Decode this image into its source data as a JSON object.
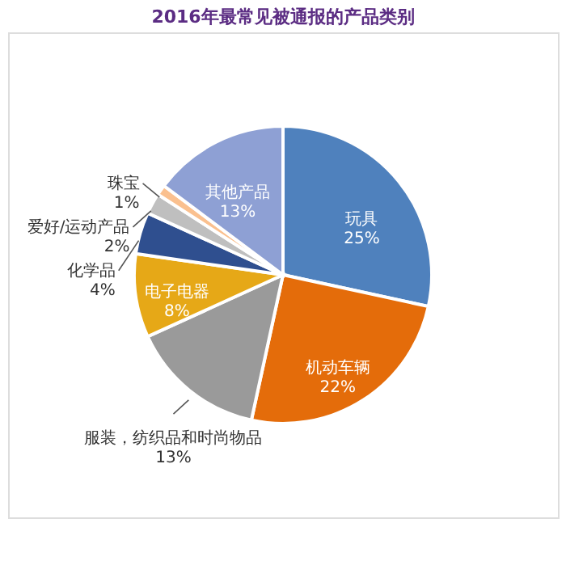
{
  "chart_data": {
    "type": "pie",
    "title": "2016年最常见被通报的产品类别",
    "categories": [
      "玩具",
      "机动车辆",
      "服装，纺织品和时尚物品",
      "电子电器",
      "化学品",
      "爱好/运动产品",
      "珠宝",
      "其他产品"
    ],
    "values": [
      25,
      22,
      13,
      8,
      4,
      2,
      1,
      13
    ],
    "value_labels": [
      "25%",
      "22%",
      "13%",
      "8%",
      "4%",
      "2%",
      "1%",
      "13%"
    ],
    "colors": [
      "#4f81bd",
      "#e46c0a",
      "#9a9a9a",
      "#e6a817",
      "#2f4f8f",
      "#bfbfbf",
      "#fac08f",
      "#8ea0d4"
    ],
    "legend": false
  }
}
